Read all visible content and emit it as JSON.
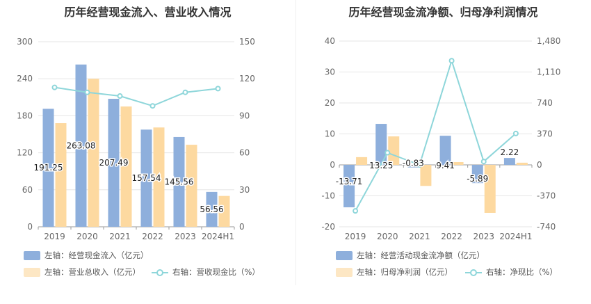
{
  "chart_data": [
    {
      "type": "bar",
      "title": "历年经营现金流入、营业收入情况",
      "categories": [
        "2019",
        "2020",
        "2021",
        "2022",
        "2023",
        "2024H1"
      ],
      "left_axis": {
        "min": 0,
        "max": 300,
        "ticks": [
          "0",
          "60",
          "120",
          "180",
          "240",
          "300"
        ]
      },
      "right_axis": {
        "min": 0,
        "max": 150,
        "ticks": [
          "0",
          "30",
          "60",
          "90",
          "120",
          "150"
        ]
      },
      "series": [
        {
          "name": "左轴：经营现金流入（亿元）",
          "kind": "bar",
          "axis": "left",
          "color": "#8eafdc",
          "values": [
            191.25,
            263.08,
            207.49,
            157.54,
            145.56,
            56.56
          ],
          "labels": [
            "191.25",
            "263.08",
            "207.49",
            "157.54",
            "145.56",
            "56.56"
          ]
        },
        {
          "name": "左轴：营业总收入（亿元）",
          "kind": "bar",
          "axis": "left",
          "color": "#fdd9a0",
          "values": [
            168,
            240,
            195,
            161,
            133,
            50
          ]
        },
        {
          "name": "右轴：营收现金比（%）",
          "kind": "line",
          "axis": "right",
          "color": "#8ed6da",
          "values": [
            113,
            109,
            106,
            98,
            109,
            112
          ]
        }
      ],
      "grid": true,
      "legend": "bottom"
    },
    {
      "type": "bar",
      "title": "历年经营现金流净额、归母净利润情况",
      "categories": [
        "2019",
        "2020",
        "2021",
        "2022",
        "2023",
        "2024H1"
      ],
      "left_axis": {
        "min": -20,
        "max": 40,
        "ticks": [
          "-20",
          "-10",
          "0",
          "10",
          "20",
          "30",
          "40"
        ]
      },
      "right_axis": {
        "min": -740,
        "max": 1480,
        "ticks": [
          "-740",
          "-370",
          "0",
          "370",
          "740",
          "1,110",
          "1,480"
        ]
      },
      "series": [
        {
          "name": "左轴：经营活动现金流净额（亿元）",
          "kind": "bar",
          "axis": "left",
          "color": "#8eafdc",
          "values": [
            -13.71,
            13.25,
            -0.83,
            9.41,
            -5.89,
            2.22
          ],
          "labels": [
            "-13.71",
            "13.25",
            "-0.83",
            "9.41",
            "-5.89",
            "2.22"
          ]
        },
        {
          "name": "左轴：归母净利润（亿元）",
          "kind": "bar",
          "axis": "left",
          "color": "#fdd9a0",
          "values": [
            2.5,
            9.2,
            -6.8,
            0.9,
            -15.5,
            0.7
          ]
        },
        {
          "name": "右轴：净现比（%）",
          "kind": "line",
          "axis": "right",
          "color": "#8ed6da",
          "values": [
            -550,
            145,
            0,
            1245,
            40,
            375
          ]
        }
      ],
      "grid": true,
      "legend": "bottom"
    }
  ]
}
